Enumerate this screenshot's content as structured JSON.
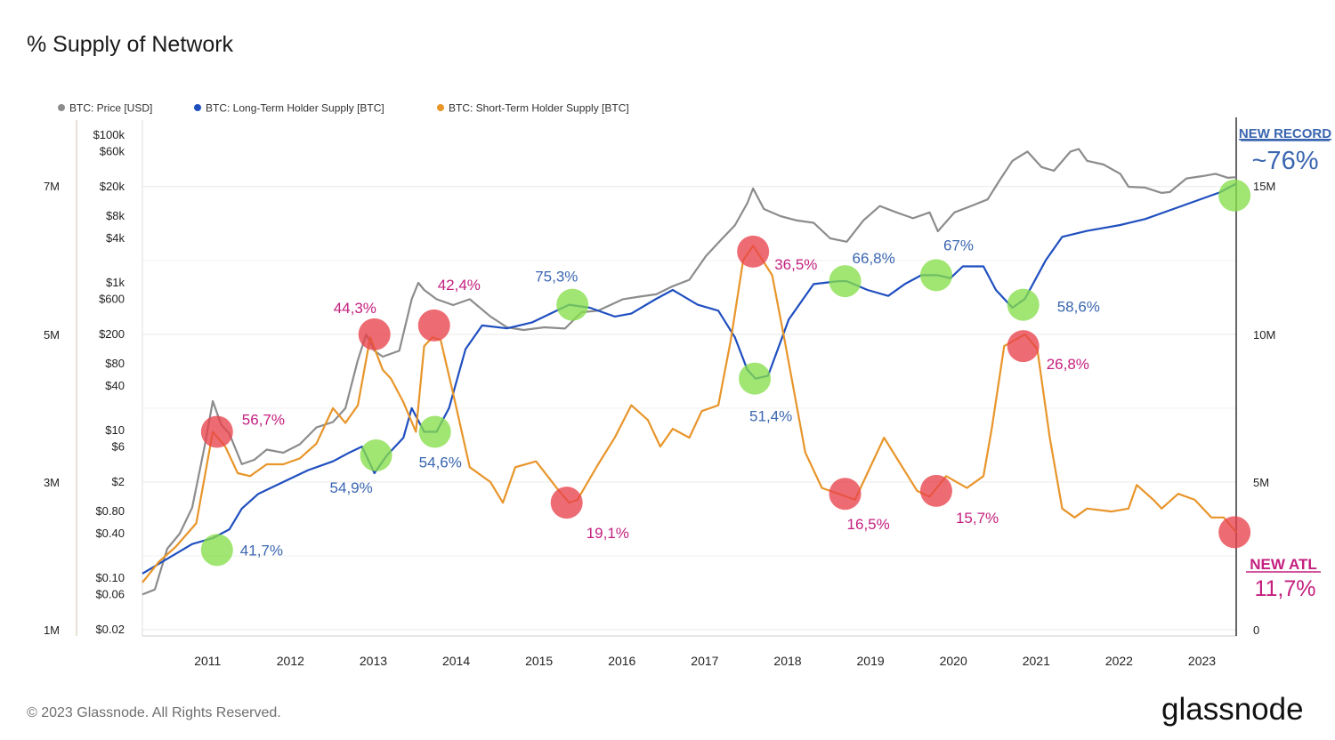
{
  "title": "% Supply of Network",
  "footer": {
    "copyright": "© 2023 Glassnode. All Rights Reserved.",
    "brand": "glassnode"
  },
  "colors": {
    "price": "#8c8c8c",
    "lth": "#1f4fbf",
    "sth": "#e8952a",
    "ath_marker": "#e8434b",
    "low_marker": "#86de4a",
    "lth_label": "#3a66b0",
    "sth_label": "#c41f7f"
  },
  "legend": [
    {
      "label": "BTC: Price [USD]",
      "color": "#8c8c8c"
    },
    {
      "label": "BTC: Long-Term Holder Supply [BTC]",
      "color": "#1f4fbf"
    },
    {
      "label": "BTC: Short-Term Holder Supply [BTC]",
      "color": "#e8952a"
    }
  ],
  "chart_data": {
    "type": "line",
    "title": "% Supply of Network",
    "x_range": [
      2010.6,
      2023.8
    ],
    "x_ticks": [
      "2011",
      "2012",
      "2013",
      "2014",
      "2015",
      "2016",
      "2017",
      "2018",
      "2019",
      "2020",
      "2021",
      "2022",
      "2023"
    ],
    "y_left_supply_ticks": [
      {
        "label": "7M",
        "value": 7000000
      },
      {
        "label": "5M",
        "value": 5000000
      },
      {
        "label": "3M",
        "value": 3000000
      },
      {
        "label": "1M",
        "value": 1000000
      }
    ],
    "y_price_ticks": [
      {
        "label": "$100k",
        "value": 100000
      },
      {
        "label": "$60k",
        "value": 60000
      },
      {
        "label": "$20k",
        "value": 20000
      },
      {
        "label": "$8k",
        "value": 8000
      },
      {
        "label": "$4k",
        "value": 4000
      },
      {
        "label": "$1k",
        "value": 1000
      },
      {
        "label": "$600",
        "value": 600
      },
      {
        "label": "$200",
        "value": 200
      },
      {
        "label": "$80",
        "value": 80
      },
      {
        "label": "$40",
        "value": 40
      },
      {
        "label": "$10",
        "value": 10
      },
      {
        "label": "$6",
        "value": 6
      },
      {
        "label": "$2",
        "value": 2
      },
      {
        "label": "$0.80",
        "value": 0.8
      },
      {
        "label": "$0.40",
        "value": 0.4
      },
      {
        "label": "$0.10",
        "value": 0.1
      },
      {
        "label": "$0.06",
        "value": 0.06
      },
      {
        "label": "$0.02",
        "value": 0.02
      }
    ],
    "y_right_ticks": [
      {
        "label": "15M",
        "value": 15000000
      },
      {
        "label": "10M",
        "value": 10000000
      },
      {
        "label": "5M",
        "value": 5000000
      },
      {
        "label": "0",
        "value": 0
      }
    ],
    "price_scale": "log",
    "grid": true,
    "legend_position": "top-left",
    "series": [
      {
        "name": "BTC: Price [USD]",
        "axis": "price",
        "points": [
          [
            2010.6,
            0.06
          ],
          [
            2010.75,
            0.07
          ],
          [
            2010.9,
            0.25
          ],
          [
            2011.05,
            0.4
          ],
          [
            2011.2,
            0.9
          ],
          [
            2011.35,
            6
          ],
          [
            2011.45,
            25
          ],
          [
            2011.55,
            12
          ],
          [
            2011.65,
            9
          ],
          [
            2011.8,
            3.5
          ],
          [
            2011.95,
            4
          ],
          [
            2012.1,
            5.5
          ],
          [
            2012.3,
            5
          ],
          [
            2012.5,
            6.5
          ],
          [
            2012.7,
            11
          ],
          [
            2012.9,
            13
          ],
          [
            2013.05,
            20
          ],
          [
            2013.2,
            90
          ],
          [
            2013.3,
            200
          ],
          [
            2013.4,
            120
          ],
          [
            2013.5,
            100
          ],
          [
            2013.7,
            120
          ],
          [
            2013.85,
            600
          ],
          [
            2013.93,
            1000
          ],
          [
            2014.0,
            800
          ],
          [
            2014.15,
            600
          ],
          [
            2014.35,
            500
          ],
          [
            2014.55,
            600
          ],
          [
            2014.8,
            350
          ],
          [
            2015.0,
            250
          ],
          [
            2015.2,
            230
          ],
          [
            2015.45,
            250
          ],
          [
            2015.7,
            240
          ],
          [
            2015.9,
            400
          ],
          [
            2016.1,
            420
          ],
          [
            2016.4,
            600
          ],
          [
            2016.6,
            650
          ],
          [
            2016.8,
            700
          ],
          [
            2017.0,
            900
          ],
          [
            2017.2,
            1100
          ],
          [
            2017.4,
            2300
          ],
          [
            2017.6,
            4000
          ],
          [
            2017.75,
            6000
          ],
          [
            2017.9,
            12000
          ],
          [
            2017.97,
            19000
          ],
          [
            2018.1,
            10000
          ],
          [
            2018.3,
            8000
          ],
          [
            2018.5,
            7000
          ],
          [
            2018.7,
            6500
          ],
          [
            2018.9,
            4000
          ],
          [
            2019.1,
            3600
          ],
          [
            2019.3,
            7000
          ],
          [
            2019.5,
            11000
          ],
          [
            2019.7,
            9000
          ],
          [
            2019.9,
            7500
          ],
          [
            2020.1,
            9000
          ],
          [
            2020.2,
            5000
          ],
          [
            2020.4,
            9000
          ],
          [
            2020.6,
            11000
          ],
          [
            2020.8,
            13500
          ],
          [
            2020.95,
            25000
          ],
          [
            2021.1,
            45000
          ],
          [
            2021.28,
            60000
          ],
          [
            2021.45,
            37000
          ],
          [
            2021.6,
            33000
          ],
          [
            2021.8,
            60000
          ],
          [
            2021.9,
            65000
          ],
          [
            2022.0,
            45000
          ],
          [
            2022.2,
            40000
          ],
          [
            2022.4,
            30000
          ],
          [
            2022.5,
            20000
          ],
          [
            2022.7,
            19500
          ],
          [
            2022.9,
            16500
          ],
          [
            2023.0,
            17000
          ],
          [
            2023.2,
            26000
          ],
          [
            2023.4,
            28000
          ],
          [
            2023.55,
            30000
          ],
          [
            2023.7,
            26500
          ],
          [
            2023.8,
            27000
          ]
        ]
      },
      {
        "name": "BTC: Long-Term Holder Supply [BTC]",
        "axis": "right",
        "points": [
          [
            2010.6,
            1900000
          ],
          [
            2010.9,
            2400000
          ],
          [
            2011.2,
            2900000
          ],
          [
            2011.45,
            3100000
          ],
          [
            2011.65,
            3400000
          ],
          [
            2011.8,
            4100000
          ],
          [
            2012.0,
            4600000
          ],
          [
            2012.3,
            5000000
          ],
          [
            2012.6,
            5400000
          ],
          [
            2012.9,
            5700000
          ],
          [
            2013.1,
            6000000
          ],
          [
            2013.25,
            6200000
          ],
          [
            2013.4,
            5300000
          ],
          [
            2013.55,
            5900000
          ],
          [
            2013.75,
            6500000
          ],
          [
            2013.85,
            7500000
          ],
          [
            2014.0,
            6700000
          ],
          [
            2014.15,
            6700000
          ],
          [
            2014.3,
            7500000
          ],
          [
            2014.5,
            9500000
          ],
          [
            2014.7,
            10300000
          ],
          [
            2015.0,
            10200000
          ],
          [
            2015.3,
            10400000
          ],
          [
            2015.6,
            10800000
          ],
          [
            2015.75,
            11000000
          ],
          [
            2016.0,
            10900000
          ],
          [
            2016.3,
            10600000
          ],
          [
            2016.5,
            10700000
          ],
          [
            2016.8,
            11200000
          ],
          [
            2017.0,
            11500000
          ],
          [
            2017.3,
            11000000
          ],
          [
            2017.55,
            10800000
          ],
          [
            2017.75,
            9900000
          ],
          [
            2017.9,
            8800000
          ],
          [
            2018.0,
            8500000
          ],
          [
            2018.15,
            8600000
          ],
          [
            2018.4,
            10500000
          ],
          [
            2018.7,
            11700000
          ],
          [
            2019.0,
            11800000
          ],
          [
            2019.1,
            11800000
          ],
          [
            2019.35,
            11500000
          ],
          [
            2019.6,
            11300000
          ],
          [
            2019.8,
            11700000
          ],
          [
            2020.0,
            12000000
          ],
          [
            2020.2,
            12000000
          ],
          [
            2020.35,
            11900000
          ],
          [
            2020.5,
            12300000
          ],
          [
            2020.75,
            12300000
          ],
          [
            2020.9,
            11500000
          ],
          [
            2021.1,
            10900000
          ],
          [
            2021.25,
            11200000
          ],
          [
            2021.5,
            12500000
          ],
          [
            2021.7,
            13300000
          ],
          [
            2022.0,
            13500000
          ],
          [
            2022.4,
            13700000
          ],
          [
            2022.7,
            13900000
          ],
          [
            2023.0,
            14200000
          ],
          [
            2023.3,
            14500000
          ],
          [
            2023.6,
            14800000
          ],
          [
            2023.8,
            15100000
          ]
        ]
      },
      {
        "name": "BTC: Short-Term Holder Supply [BTC]",
        "axis": "right",
        "points": [
          [
            2010.6,
            1600000
          ],
          [
            2010.8,
            2300000
          ],
          [
            2011.0,
            2800000
          ],
          [
            2011.25,
            3600000
          ],
          [
            2011.45,
            6700000
          ],
          [
            2011.6,
            6200000
          ],
          [
            2011.75,
            5300000
          ],
          [
            2011.9,
            5200000
          ],
          [
            2012.1,
            5600000
          ],
          [
            2012.3,
            5600000
          ],
          [
            2012.5,
            5800000
          ],
          [
            2012.7,
            6300000
          ],
          [
            2012.9,
            7500000
          ],
          [
            2013.05,
            7000000
          ],
          [
            2013.2,
            7600000
          ],
          [
            2013.35,
            9900000
          ],
          [
            2013.5,
            8800000
          ],
          [
            2013.6,
            8500000
          ],
          [
            2013.75,
            7700000
          ],
          [
            2013.9,
            6700000
          ],
          [
            2014.0,
            9600000
          ],
          [
            2014.1,
            9900000
          ],
          [
            2014.2,
            9800000
          ],
          [
            2014.35,
            8000000
          ],
          [
            2014.55,
            5500000
          ],
          [
            2014.8,
            5000000
          ],
          [
            2014.95,
            4300000
          ],
          [
            2015.1,
            5500000
          ],
          [
            2015.35,
            5700000
          ],
          [
            2015.6,
            4800000
          ],
          [
            2015.75,
            4300000
          ],
          [
            2015.85,
            4400000
          ],
          [
            2016.1,
            5600000
          ],
          [
            2016.3,
            6500000
          ],
          [
            2016.5,
            7600000
          ],
          [
            2016.7,
            7100000
          ],
          [
            2016.85,
            6200000
          ],
          [
            2017.0,
            6800000
          ],
          [
            2017.2,
            6500000
          ],
          [
            2017.35,
            7400000
          ],
          [
            2017.55,
            7600000
          ],
          [
            2017.7,
            9800000
          ],
          [
            2017.85,
            12500000
          ],
          [
            2017.97,
            13000000
          ],
          [
            2018.2,
            12000000
          ],
          [
            2018.35,
            9800000
          ],
          [
            2018.6,
            6000000
          ],
          [
            2018.8,
            4800000
          ],
          [
            2019.0,
            4600000
          ],
          [
            2019.2,
            4400000
          ],
          [
            2019.4,
            5600000
          ],
          [
            2019.55,
            6500000
          ],
          [
            2019.75,
            5600000
          ],
          [
            2019.95,
            4700000
          ],
          [
            2020.1,
            4500000
          ],
          [
            2020.3,
            5200000
          ],
          [
            2020.55,
            4800000
          ],
          [
            2020.75,
            5200000
          ],
          [
            2020.85,
            6800000
          ],
          [
            2021.0,
            9600000
          ],
          [
            2021.25,
            10000000
          ],
          [
            2021.4,
            9500000
          ],
          [
            2021.55,
            6500000
          ],
          [
            2021.7,
            4100000
          ],
          [
            2021.85,
            3800000
          ],
          [
            2022.0,
            4100000
          ],
          [
            2022.3,
            4000000
          ],
          [
            2022.5,
            4100000
          ],
          [
            2022.6,
            4900000
          ],
          [
            2022.8,
            4400000
          ],
          [
            2022.9,
            4100000
          ],
          [
            2023.1,
            4600000
          ],
          [
            2023.3,
            4400000
          ],
          [
            2023.5,
            3800000
          ],
          [
            2023.65,
            3800000
          ],
          [
            2023.8,
            3300000
          ]
        ]
      }
    ],
    "annotations": [
      {
        "text": "56,7%",
        "kind": "ath",
        "series": "sth",
        "x": 2011.5,
        "y": 6700000
      },
      {
        "text": "44,3%",
        "kind": "ath",
        "series": "sth",
        "x": 2013.4,
        "y": 10000000
      },
      {
        "text": "42,4%",
        "kind": "ath",
        "series": "sth",
        "x": 2014.12,
        "y": 10300000
      },
      {
        "text": "19,1%",
        "kind": "ath",
        "series": "sth",
        "x": 2015.72,
        "y": 4300000
      },
      {
        "text": "36,5%",
        "kind": "ath",
        "series": "sth",
        "x": 2017.97,
        "y": 12800000
      },
      {
        "text": "16,5%",
        "kind": "ath",
        "series": "sth",
        "x": 2019.08,
        "y": 4600000
      },
      {
        "text": "15,7%",
        "kind": "ath",
        "series": "sth",
        "x": 2020.18,
        "y": 4700000
      },
      {
        "text": "26,8%",
        "kind": "ath",
        "series": "sth",
        "x": 2021.23,
        "y": 9600000
      },
      {
        "text": "41,7%",
        "kind": "low",
        "series": "lth",
        "x": 2011.5,
        "y": 2700000
      },
      {
        "text": "54,9%",
        "kind": "low",
        "series": "lth",
        "x": 2013.42,
        "y": 5900000
      },
      {
        "text": "54,6%",
        "kind": "low",
        "series": "lth",
        "x": 2014.13,
        "y": 6700000
      },
      {
        "text": "75,3%",
        "kind": "low",
        "series": "lth",
        "x": 2015.79,
        "y": 11000000
      },
      {
        "text": "51,4%",
        "kind": "low",
        "series": "lth",
        "x": 2017.99,
        "y": 8500000
      },
      {
        "text": "66,8%",
        "kind": "low",
        "series": "lth",
        "x": 2019.08,
        "y": 11800000
      },
      {
        "text": "67%",
        "kind": "low",
        "series": "lth",
        "x": 2020.18,
        "y": 12000000
      },
      {
        "text": "58,6%",
        "kind": "low",
        "series": "lth",
        "x": 2021.23,
        "y": 11000000
      },
      {
        "text": "",
        "kind": "low",
        "series": "lth",
        "x": 2023.78,
        "y": 14700000
      },
      {
        "text": "",
        "kind": "ath",
        "series": "sth",
        "x": 2023.78,
        "y": 3300000
      }
    ],
    "callouts": {
      "new_record_title": "NEW RECORD",
      "new_record_value": "~76%",
      "new_atl_title": "NEW ATL",
      "new_atl_value": "11,7%"
    }
  }
}
